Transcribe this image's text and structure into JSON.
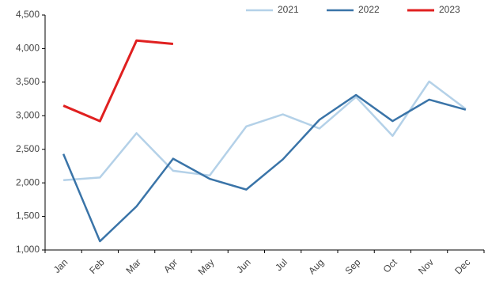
{
  "chart_data": {
    "type": "line",
    "categories": [
      "Jan",
      "Feb",
      "Mar",
      "Apr",
      "May",
      "Jun",
      "Jul",
      "Aug",
      "Sep",
      "Oct",
      "Nov",
      "Dec"
    ],
    "series": [
      {
        "name": "2021",
        "color": "#b4d1e8",
        "values": [
          2040,
          2080,
          2740,
          2180,
          2110,
          2840,
          3020,
          2810,
          3280,
          2700,
          3510,
          3100
        ]
      },
      {
        "name": "2022",
        "color": "#3a74a8",
        "values": [
          2430,
          1130,
          1650,
          2360,
          2060,
          1900,
          2350,
          2940,
          3310,
          2920,
          3240,
          3090
        ]
      },
      {
        "name": "2023",
        "color": "#e02020",
        "values": [
          3150,
          2920,
          4120,
          4070,
          null,
          null,
          null,
          null,
          null,
          null,
          null,
          null
        ]
      }
    ],
    "ylim": [
      1000,
      4500
    ],
    "yticks": [
      {
        "value": 1000,
        "label": "1,000"
      },
      {
        "value": 1500,
        "label": "1,500"
      },
      {
        "value": 2000,
        "label": "2,000"
      },
      {
        "value": 2500,
        "label": "2,500"
      },
      {
        "value": 3000,
        "label": "3,000"
      },
      {
        "value": 3500,
        "label": "3,500"
      },
      {
        "value": 4000,
        "label": "4,000"
      },
      {
        "value": 4500,
        "label": "4,500"
      }
    ],
    "grid": false,
    "legend": "top-right"
  }
}
